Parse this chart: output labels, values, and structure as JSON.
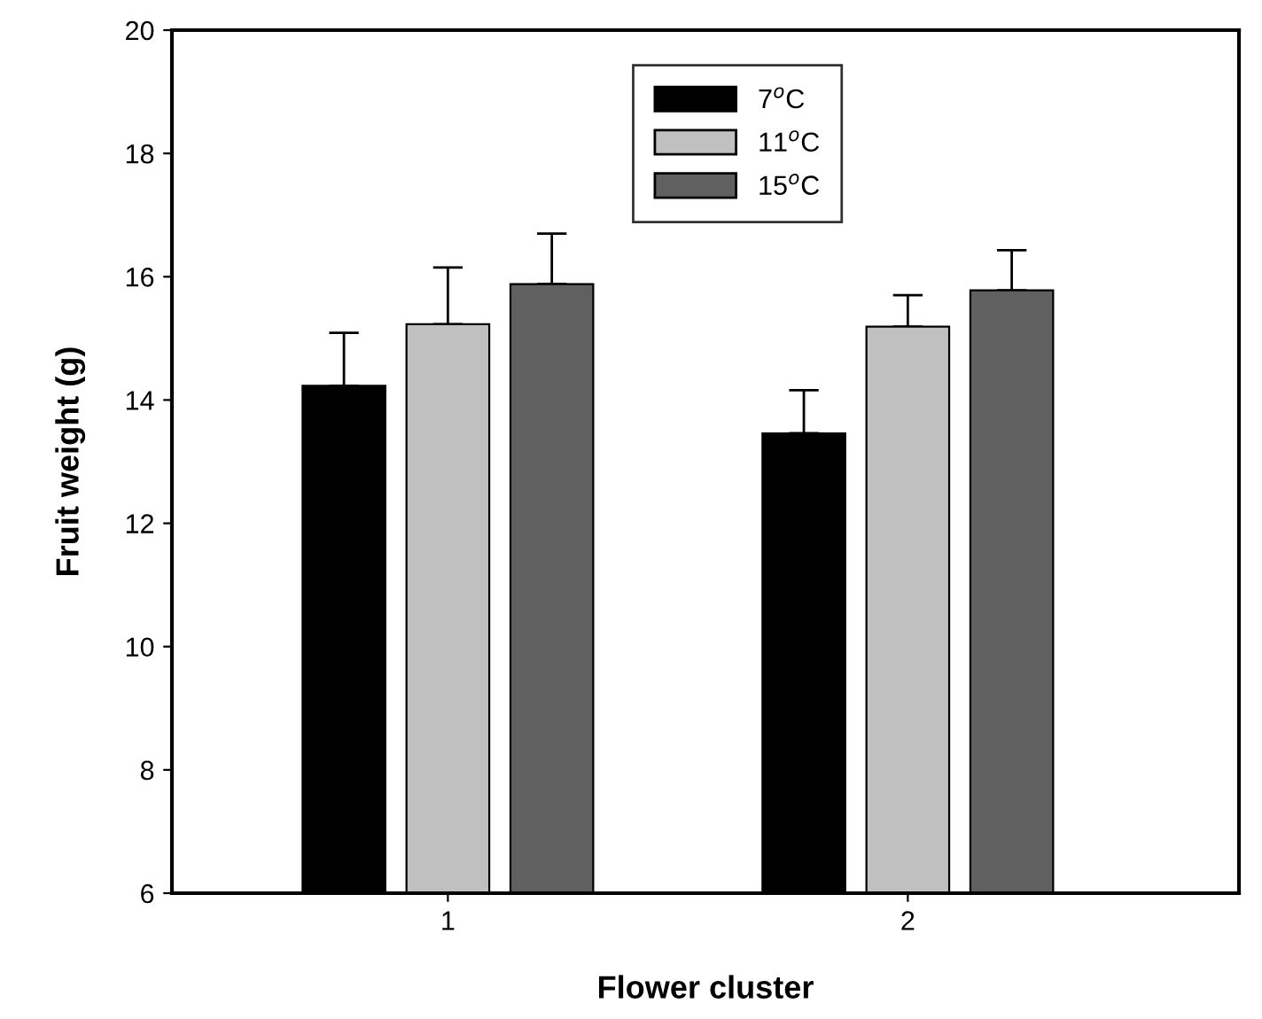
{
  "chart_data": {
    "type": "bar",
    "xlabel": "Flower cluster",
    "ylabel": "Fruit weight (g)",
    "categories": [
      "1",
      "2"
    ],
    "series": [
      {
        "name": "7$^{o}$C",
        "color": "#000000",
        "values": [
          14.23,
          13.46
        ],
        "errors": [
          [
            14.23,
            15.09
          ],
          [
            13.46,
            14.16
          ]
        ]
      },
      {
        "name": "11$^{o}$C",
        "color": "#c0c0c0",
        "values": [
          15.23,
          15.19
        ],
        "errors": [
          [
            15.23,
            16.15
          ],
          [
            15.19,
            15.7
          ]
        ]
      },
      {
        "name": "15$^{o}$C",
        "color": "#606060",
        "values": [
          15.88,
          15.78
        ],
        "errors": [
          [
            15.88,
            16.7
          ],
          [
            15.78,
            16.43
          ]
        ]
      }
    ],
    "ylim": [
      6,
      20
    ],
    "yticks": [
      6,
      8,
      10,
      12,
      14,
      16,
      18,
      20
    ],
    "grid": false,
    "legend": "top"
  }
}
